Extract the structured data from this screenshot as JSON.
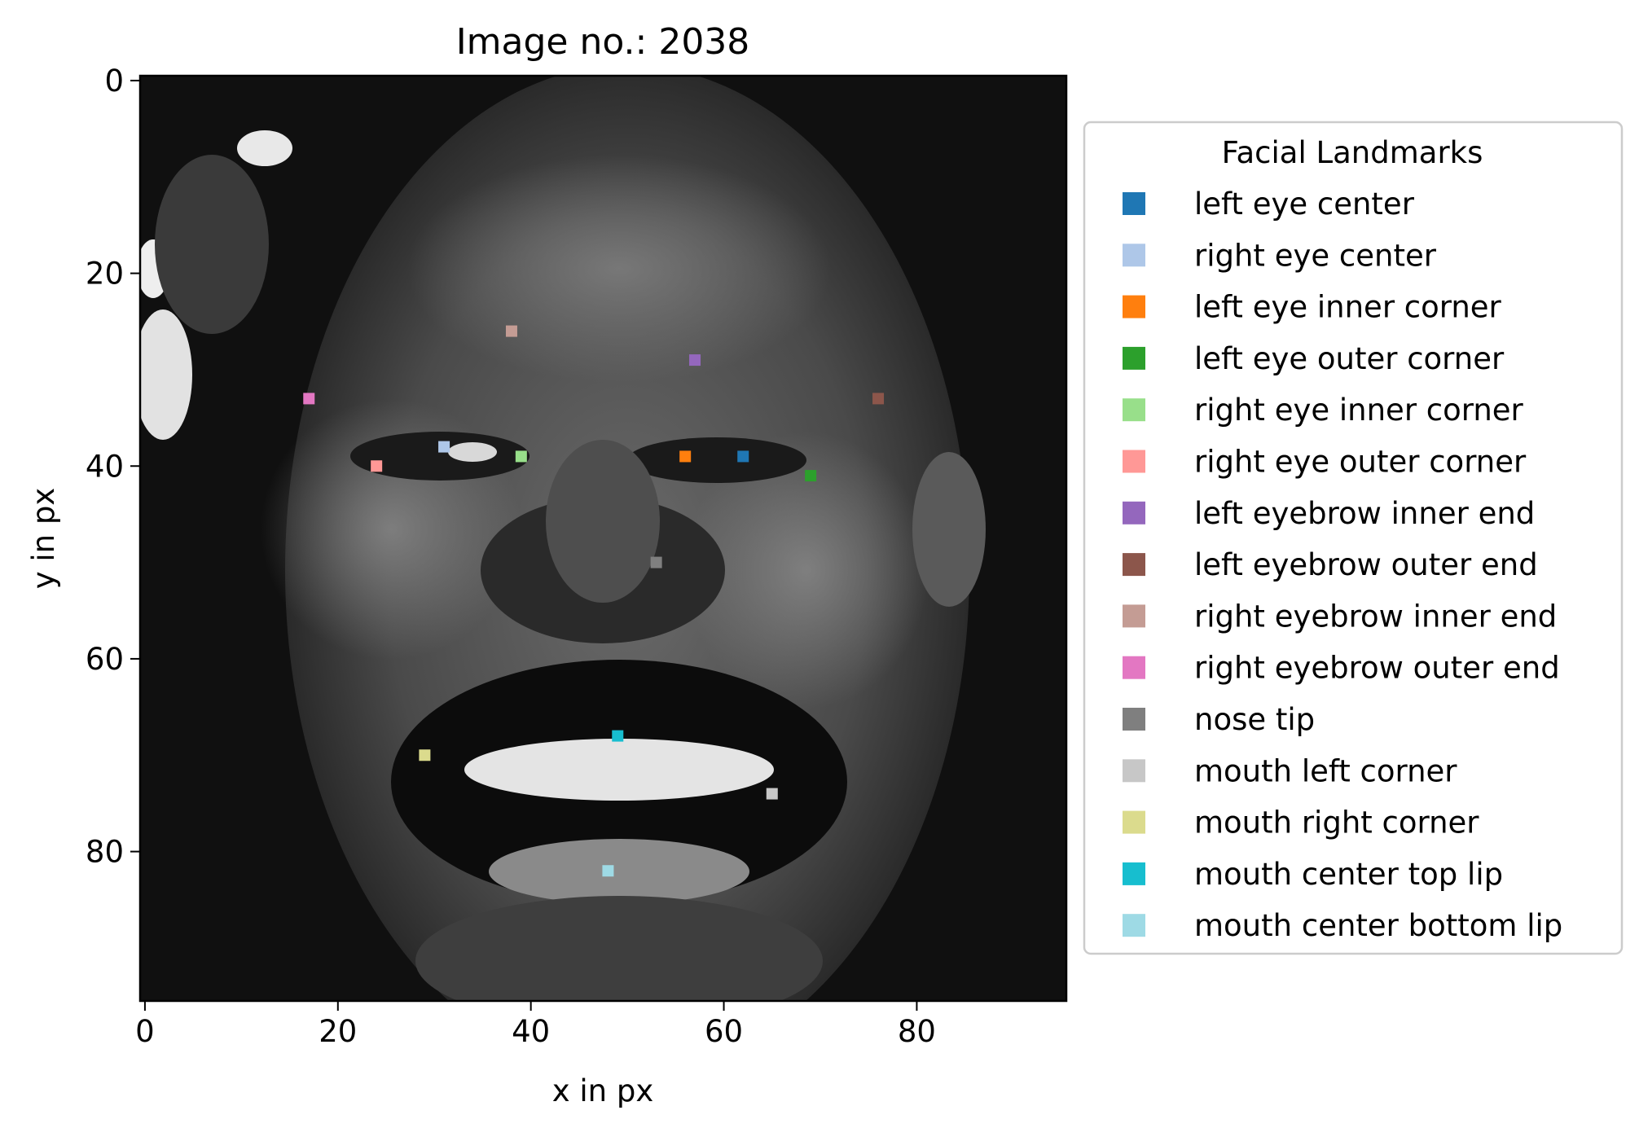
{
  "chart_data": {
    "type": "scatter",
    "title": "Image no.: 2038",
    "xlabel": "x in px",
    "ylabel": "y in px",
    "xlim": [
      -0.5,
      95.5
    ],
    "ylim": [
      95.5,
      -0.5
    ],
    "xticks": [
      0,
      20,
      40,
      60,
      80
    ],
    "yticks": [
      0,
      20,
      40,
      60,
      80
    ],
    "background_image": "grayscale face photograph of a laughing man",
    "grid": false,
    "legend": {
      "title": "Facial Landmarks",
      "placement": "right, outside plot"
    },
    "series": [
      {
        "name": "left eye center",
        "color": "#1f77b4",
        "x": 62,
        "y": 39
      },
      {
        "name": "right eye center",
        "color": "#aec7e8",
        "x": 31,
        "y": 38
      },
      {
        "name": "left eye inner corner",
        "color": "#ff7f0e",
        "x": 56,
        "y": 39
      },
      {
        "name": "left eye outer corner",
        "color": "#2ca02c",
        "x": 69,
        "y": 41
      },
      {
        "name": "right eye inner corner",
        "color": "#98df8a",
        "x": 39,
        "y": 39
      },
      {
        "name": "right eye outer corner",
        "color": "#ff9896",
        "x": 24,
        "y": 40
      },
      {
        "name": "left eyebrow inner end",
        "color": "#9467bd",
        "x": 57,
        "y": 29
      },
      {
        "name": "left eyebrow outer end",
        "color": "#8c564b",
        "x": 76,
        "y": 33
      },
      {
        "name": "right eyebrow inner end",
        "color": "#c49c94",
        "x": 38,
        "y": 26
      },
      {
        "name": "right eyebrow outer end",
        "color": "#e377c2",
        "x": 17,
        "y": 33
      },
      {
        "name": "nose tip",
        "color": "#7f7f7f",
        "x": 53,
        "y": 50
      },
      {
        "name": "mouth left corner",
        "color": "#c7c7c7",
        "x": 65,
        "y": 74
      },
      {
        "name": "mouth right corner",
        "color": "#dbdb8d",
        "x": 29,
        "y": 70
      },
      {
        "name": "mouth center top lip",
        "color": "#17becf",
        "x": 49,
        "y": 68
      },
      {
        "name": "mouth center bottom lip",
        "color": "#9edae5",
        "x": 48,
        "y": 82
      }
    ]
  }
}
